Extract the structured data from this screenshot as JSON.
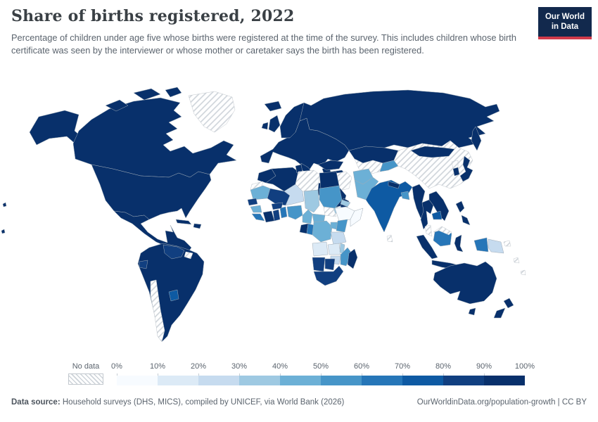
{
  "header": {
    "title": "Share of births registered, 2022",
    "subtitle": "Percentage of children under age five whose births were registered at the time of the survey. This includes children whose birth certificate was seen by the interviewer or whose mother or caretaker says the birth has been registered."
  },
  "logo": {
    "line1": "Our World",
    "line2": "in Data"
  },
  "legend": {
    "no_data_label": "No data",
    "ticks": [
      "0%",
      "10%",
      "20%",
      "30%",
      "40%",
      "50%",
      "60%",
      "70%",
      "80%",
      "90%",
      "100%"
    ]
  },
  "footer": {
    "source_label": "Data source:",
    "source_text": " Household surveys (DHS, MICS), compiled by UNICEF, via World Bank (2026)",
    "link": "OurWorldinData.org/population-growth | CC BY"
  },
  "colors": {
    "bins": [
      "#f7fbff",
      "#dceaf6",
      "#c6dbef",
      "#9ec9e2",
      "#6cb0d6",
      "#4695c8",
      "#2676b8",
      "#0e5aa3",
      "#113f80",
      "#08306b"
    ],
    "hatch_stripe": "#cdd3d9",
    "border": "#9fabb6",
    "logo_bg": "#12294d",
    "logo_accent": "#d13b4b",
    "title_text": "#3a4045",
    "body_text": "#5b646e"
  },
  "chart_data": {
    "type": "choropleth",
    "title": "Share of births registered",
    "year": "2022",
    "unit": "%",
    "legend_position": "bottom",
    "bin_labels": [
      "0-10%",
      "10-20%",
      "20-30%",
      "30-40%",
      "40-50%",
      "50-60%",
      "60-70%",
      "70-80%",
      "80-90%",
      "90-100%"
    ],
    "no_data_label": "No data",
    "regions": {
      "alaska": "90-100%",
      "canada": "90-100%",
      "united-states": "90-100%",
      "mexico-central-america": "90-100%",
      "cuba": "90-100%",
      "hispaniola": "90-100%",
      "greenland": "No data",
      "south-america": "90-100%",
      "venezuela": "80-90%",
      "ecuador": "80-90%",
      "suriname": "No data",
      "paraguay": "70-80%",
      "chile": "No data",
      "iceland": "90-100%",
      "united-kingdom": "90-100%",
      "ireland": "90-100%",
      "scandinavia": "90-100%",
      "finland": "90-100%",
      "europe": "90-100%",
      "italy": "90-100%",
      "greece": "90-100%",
      "russia": "90-100%",
      "kazakhstan": "90-100%",
      "mongolia": "90-100%",
      "turkmenistan-uzbekistan": "No data",
      "kyrgyzstan-tajikistan": "50-60%",
      "iran": "No data",
      "china": "No data",
      "north-korea": "No data",
      "turkey": "90-100%",
      "iraq-syria-jordan": "90-100%",
      "saudi-arabia": "90-100%",
      "yemen": "30-40%",
      "oman": "90-100%",
      "afghanistan": "40-50%",
      "pakistan": "40-50%",
      "india": "70-80%",
      "nepal": "90-100%",
      "bangladesh": "50-60%",
      "sri-lanka": "No data",
      "myanmar": "90-100%",
      "thailand": "90-100%",
      "laos-vietnam": "90-100%",
      "cambodia": "70-80%",
      "malaysia": "No data",
      "malaysia-borneo": "No data",
      "indonesia": "90-100%",
      "indonesia-kalimantan": "60-70%",
      "indonesia-papua": "60-70%",
      "philippines": "90-100%",
      "japan": "90-100%",
      "south-korea": "90-100%",
      "papua-new-guinea": "20-30%",
      "pacific-islands": "No data",
      "australia": "90-100%",
      "new-zealand": "90-100%",
      "hawaii": "90-100%",
      "morocco": "90-100%",
      "western-sahara": "No data",
      "algeria": "90-100%",
      "tunisia": "90-100%",
      "libya": "No data",
      "egypt": "90-100%",
      "mauritania": "40-50%",
      "mali": "80-90%",
      "niger": "20-30%",
      "chad": "30-40%",
      "sudan": "50-60%",
      "eritrea": "30-40%",
      "ethiopia": "0-10%",
      "somalia": "0-10%",
      "south-sudan": "No data",
      "senegal": "80-90%",
      "guinea": "40-50%",
      "sierra-leone-liberia": "60-70%",
      "cote-divoire": "90-100%",
      "ghana": "80-90%",
      "togo-benin": "60-70%",
      "burkina-faso": "80-90%",
      "nigeria": "50-60%",
      "cameroon": "40-50%",
      "central-african-republic": "40-50%",
      "gabon": "90-100%",
      "congo": "60-70%",
      "dr-congo": "40-50%",
      "uganda": "40-50%",
      "kenya": "50-60%",
      "tanzania": "20-30%",
      "angola": "10-20%",
      "zambia": "10-20%",
      "malawi": "30-40%",
      "mozambique": "50-60%",
      "zimbabwe": "20-30%",
      "namibia": "80-90%",
      "botswana": "80-90%",
      "south-africa": "80-90%",
      "madagascar": "90-100%"
    }
  }
}
